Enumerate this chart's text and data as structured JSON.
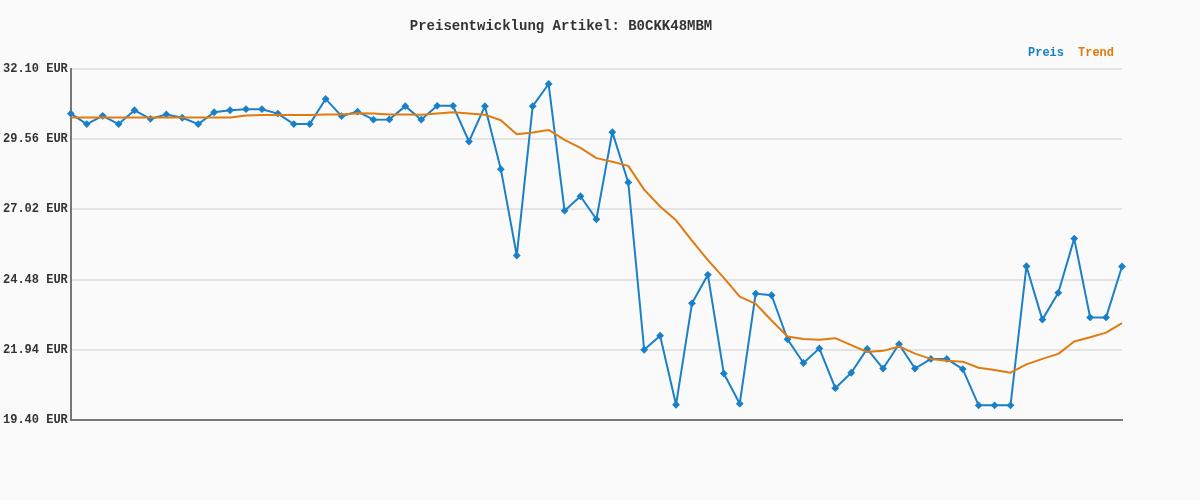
{
  "chart_data": {
    "type": "line",
    "title": "Preisentwicklung Artikel: B0CKK48MBM",
    "categories": [
      null,
      null,
      null,
      null,
      null,
      null,
      null,
      null,
      null,
      null,
      null,
      null,
      null,
      null,
      null,
      null,
      null,
      null,
      null,
      null,
      null,
      null,
      null,
      null,
      null,
      null,
      null,
      null,
      null,
      null,
      null,
      null,
      null,
      null,
      null,
      null,
      null,
      null,
      null,
      null,
      null,
      null,
      null,
      null,
      null,
      null,
      null,
      null,
      null,
      null,
      null,
      null,
      null,
      null,
      null,
      null,
      null,
      null,
      null,
      null,
      null,
      null,
      null,
      null,
      null,
      null,
      null
    ],
    "series": [
      {
        "name": "Preis",
        "color": "#1a80c8",
        "marker": "diamond",
        "values": [
          30.48,
          30.1,
          30.4,
          30.1,
          30.6,
          30.29,
          30.45,
          30.33,
          30.1,
          30.53,
          30.6,
          30.64,
          30.64,
          30.48,
          30.1,
          30.1,
          31.01,
          30.39,
          30.55,
          30.26,
          30.27,
          30.75,
          30.26,
          30.76,
          30.76,
          29.47,
          30.75,
          28.47,
          25.35,
          30.75,
          31.55,
          26.97,
          27.49,
          26.66,
          29.81,
          27.99,
          21.94,
          22.45,
          19.95,
          23.62,
          24.65,
          21.08,
          19.99,
          23.97,
          23.91,
          22.32,
          21.46,
          21.99,
          20.55,
          21.11,
          21.97,
          21.26,
          22.14,
          21.26,
          21.61,
          21.61,
          21.24,
          19.93,
          19.93,
          19.93,
          24.96,
          23.03,
          24.0,
          25.96,
          23.11,
          23.11,
          24.95
        ]
      },
      {
        "name": "Trend",
        "color": "#e07b10",
        "marker": "none",
        "values": [
          30.34,
          30.34,
          30.34,
          30.34,
          30.34,
          30.34,
          30.34,
          30.34,
          30.34,
          30.34,
          30.34,
          30.41,
          30.43,
          30.43,
          30.43,
          30.43,
          30.45,
          30.45,
          30.49,
          30.48,
          30.45,
          30.45,
          30.44,
          30.48,
          30.53,
          30.48,
          30.44,
          30.24,
          29.73,
          29.8,
          29.89,
          29.53,
          29.24,
          28.87,
          28.74,
          28.59,
          27.73,
          27.12,
          26.62,
          25.89,
          25.18,
          24.54,
          23.86,
          23.6,
          23.0,
          22.42,
          22.33,
          22.3,
          22.36,
          22.11,
          21.86,
          21.9,
          22.06,
          21.8,
          21.61,
          21.54,
          21.51,
          21.29,
          21.21,
          21.11,
          21.41,
          21.61,
          21.79,
          22.24,
          22.39,
          22.56,
          22.9
        ]
      }
    ],
    "ylim": [
      19.4,
      32.1
    ],
    "yticks": [
      {
        "value": 19.4,
        "label": "19.40 EUR"
      },
      {
        "value": 21.94,
        "label": "21.94 EUR"
      },
      {
        "value": 24.48,
        "label": "24.48 EUR"
      },
      {
        "value": 27.02,
        "label": "27.02 EUR"
      },
      {
        "value": 29.56,
        "label": "29.56 EUR"
      },
      {
        "value": 32.1,
        "label": "32.10 EUR"
      }
    ],
    "grid": "y",
    "legend": "top right",
    "tick_labels": "y",
    "line_style": "solid"
  }
}
